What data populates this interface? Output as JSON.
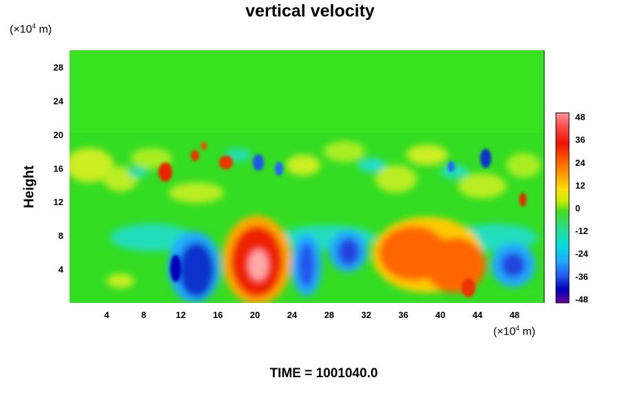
{
  "chart_data": {
    "type": "heatmap",
    "title": "vertical velocity",
    "xlabel_unit": "(×10",
    "xlabel_exp": "4",
    "xlabel_suffix": " m)",
    "ylabel": "Height",
    "ylabel_unit": "(×10",
    "ylabel_exp": "4",
    "ylabel_suffix": " m)",
    "xlim": [
      0,
      51.2
    ],
    "ylim": [
      0,
      30
    ],
    "x_ticks": [
      4,
      8,
      12,
      16,
      20,
      24,
      28,
      32,
      36,
      40,
      44,
      48
    ],
    "y_ticks": [
      4,
      8,
      12,
      16,
      20,
      24,
      28
    ],
    "colorbar": {
      "min": -50,
      "max": 50,
      "ticks": [
        48,
        36,
        24,
        12,
        0,
        -12,
        -24,
        -36,
        -48
      ]
    },
    "features": [
      {
        "label": "downdraft",
        "x": 13,
        "y": 4.5,
        "value": -36
      },
      {
        "label": "updraft",
        "x": 20.5,
        "y": 4.5,
        "value": 44
      },
      {
        "label": "downdraft",
        "x": 25.5,
        "y": 4.5,
        "value": -28
      },
      {
        "label": "downdraft",
        "x": 30,
        "y": 6,
        "value": -30
      },
      {
        "label": "updraft",
        "x": 40,
        "y": 5,
        "value": 28
      },
      {
        "label": "downdraft",
        "x": 48,
        "y": 4.5,
        "value": -32
      }
    ],
    "caption": "TIME = 1001040.0"
  },
  "colors": {
    "background": "#ffffff",
    "field_base": "#33dd22"
  }
}
